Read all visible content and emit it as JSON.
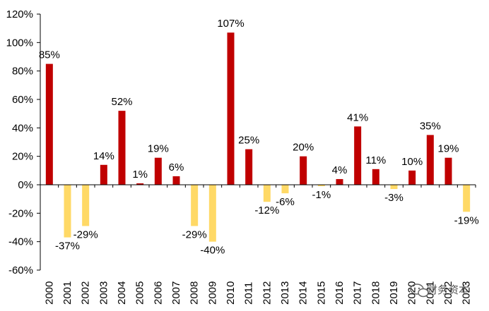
{
  "chart_data": {
    "type": "bar",
    "title": "",
    "xlabel": "",
    "ylabel": "",
    "ylim": [
      -60,
      120
    ],
    "yticks": [
      -60,
      -40,
      -20,
      0,
      20,
      40,
      60,
      80,
      100,
      120
    ],
    "ytick_suffix": "%",
    "grid": false,
    "legend": "none",
    "categories": [
      "2000",
      "2001",
      "2002",
      "2003",
      "2004",
      "2005",
      "2006",
      "2007",
      "2008",
      "2009",
      "2010",
      "2011",
      "2012",
      "2013",
      "2014",
      "2015",
      "2016",
      "2017",
      "2018",
      "2019",
      "2020",
      "2021",
      "2022",
      "2023"
    ],
    "values": [
      85,
      -37,
      -29,
      14,
      52,
      1,
      19,
      6,
      -29,
      -40,
      107,
      25,
      -12,
      -6,
      20,
      -1,
      4,
      41,
      11,
      -3,
      10,
      35,
      19,
      -19
    ],
    "value_labels": [
      "85%",
      "-37%",
      "-29%",
      "14%",
      "52%",
      "1%",
      "19%",
      "6%",
      "-29%",
      "-40%",
      "107%",
      "25%",
      "-12%",
      "-6%",
      "20%",
      "-1%",
      "4%",
      "41%",
      "11%",
      "-3%",
      "10%",
      "35%",
      "19%",
      "-19%"
    ],
    "colors": {
      "positive": "#C00000",
      "negative": "#FFD966",
      "axis": "#000000"
    }
  },
  "watermark": {
    "text": "财务资本",
    "icon": "wechat-icon"
  }
}
